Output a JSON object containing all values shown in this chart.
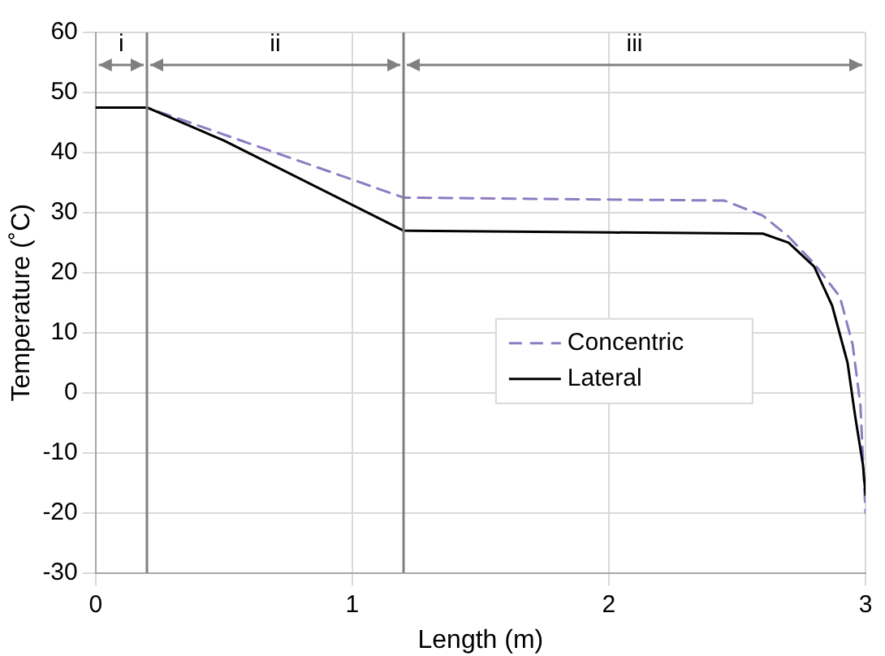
{
  "chart_data": {
    "type": "line",
    "xlabel": "Length (m)",
    "ylabel": "Temperature (˚C)",
    "xlim": [
      0,
      3
    ],
    "xticks": [
      0,
      1,
      2,
      3
    ],
    "ylim": [
      -30,
      60
    ],
    "yticks": [
      -30,
      -20,
      -10,
      0,
      10,
      20,
      30,
      40,
      50,
      60
    ],
    "grid": true,
    "legend": "right",
    "marker": "none",
    "series": [
      {
        "name": "Concentric",
        "color": "#8e7cc3",
        "line_style": "dashed",
        "x": [
          0,
          0.2,
          1.2,
          2.45,
          2.6,
          2.7,
          2.8,
          2.9,
          2.95,
          2.98,
          3.0
        ],
        "values": [
          47.5,
          47.5,
          32.5,
          32,
          29.5,
          26,
          21.5,
          16,
          8,
          -2,
          -20
        ]
      },
      {
        "name": "Lateral",
        "color": "#000000",
        "line_style": "solid",
        "x": [
          0,
          0.2,
          0.5,
          1.2,
          2.0,
          2.6,
          2.7,
          2.8,
          2.87,
          2.93,
          2.96,
          2.99,
          3.0
        ],
        "values": [
          47.5,
          47.5,
          42,
          27,
          26.7,
          26.5,
          25,
          21,
          14.5,
          5,
          -4,
          -12,
          -17
        ]
      }
    ],
    "ref_lines": [
      {
        "axis": "x",
        "value": 0.2,
        "color": "#808080"
      },
      {
        "axis": "x",
        "value": 1.2,
        "color": "#808080"
      }
    ],
    "annotations": [
      "i",
      "ii",
      "iii"
    ]
  }
}
